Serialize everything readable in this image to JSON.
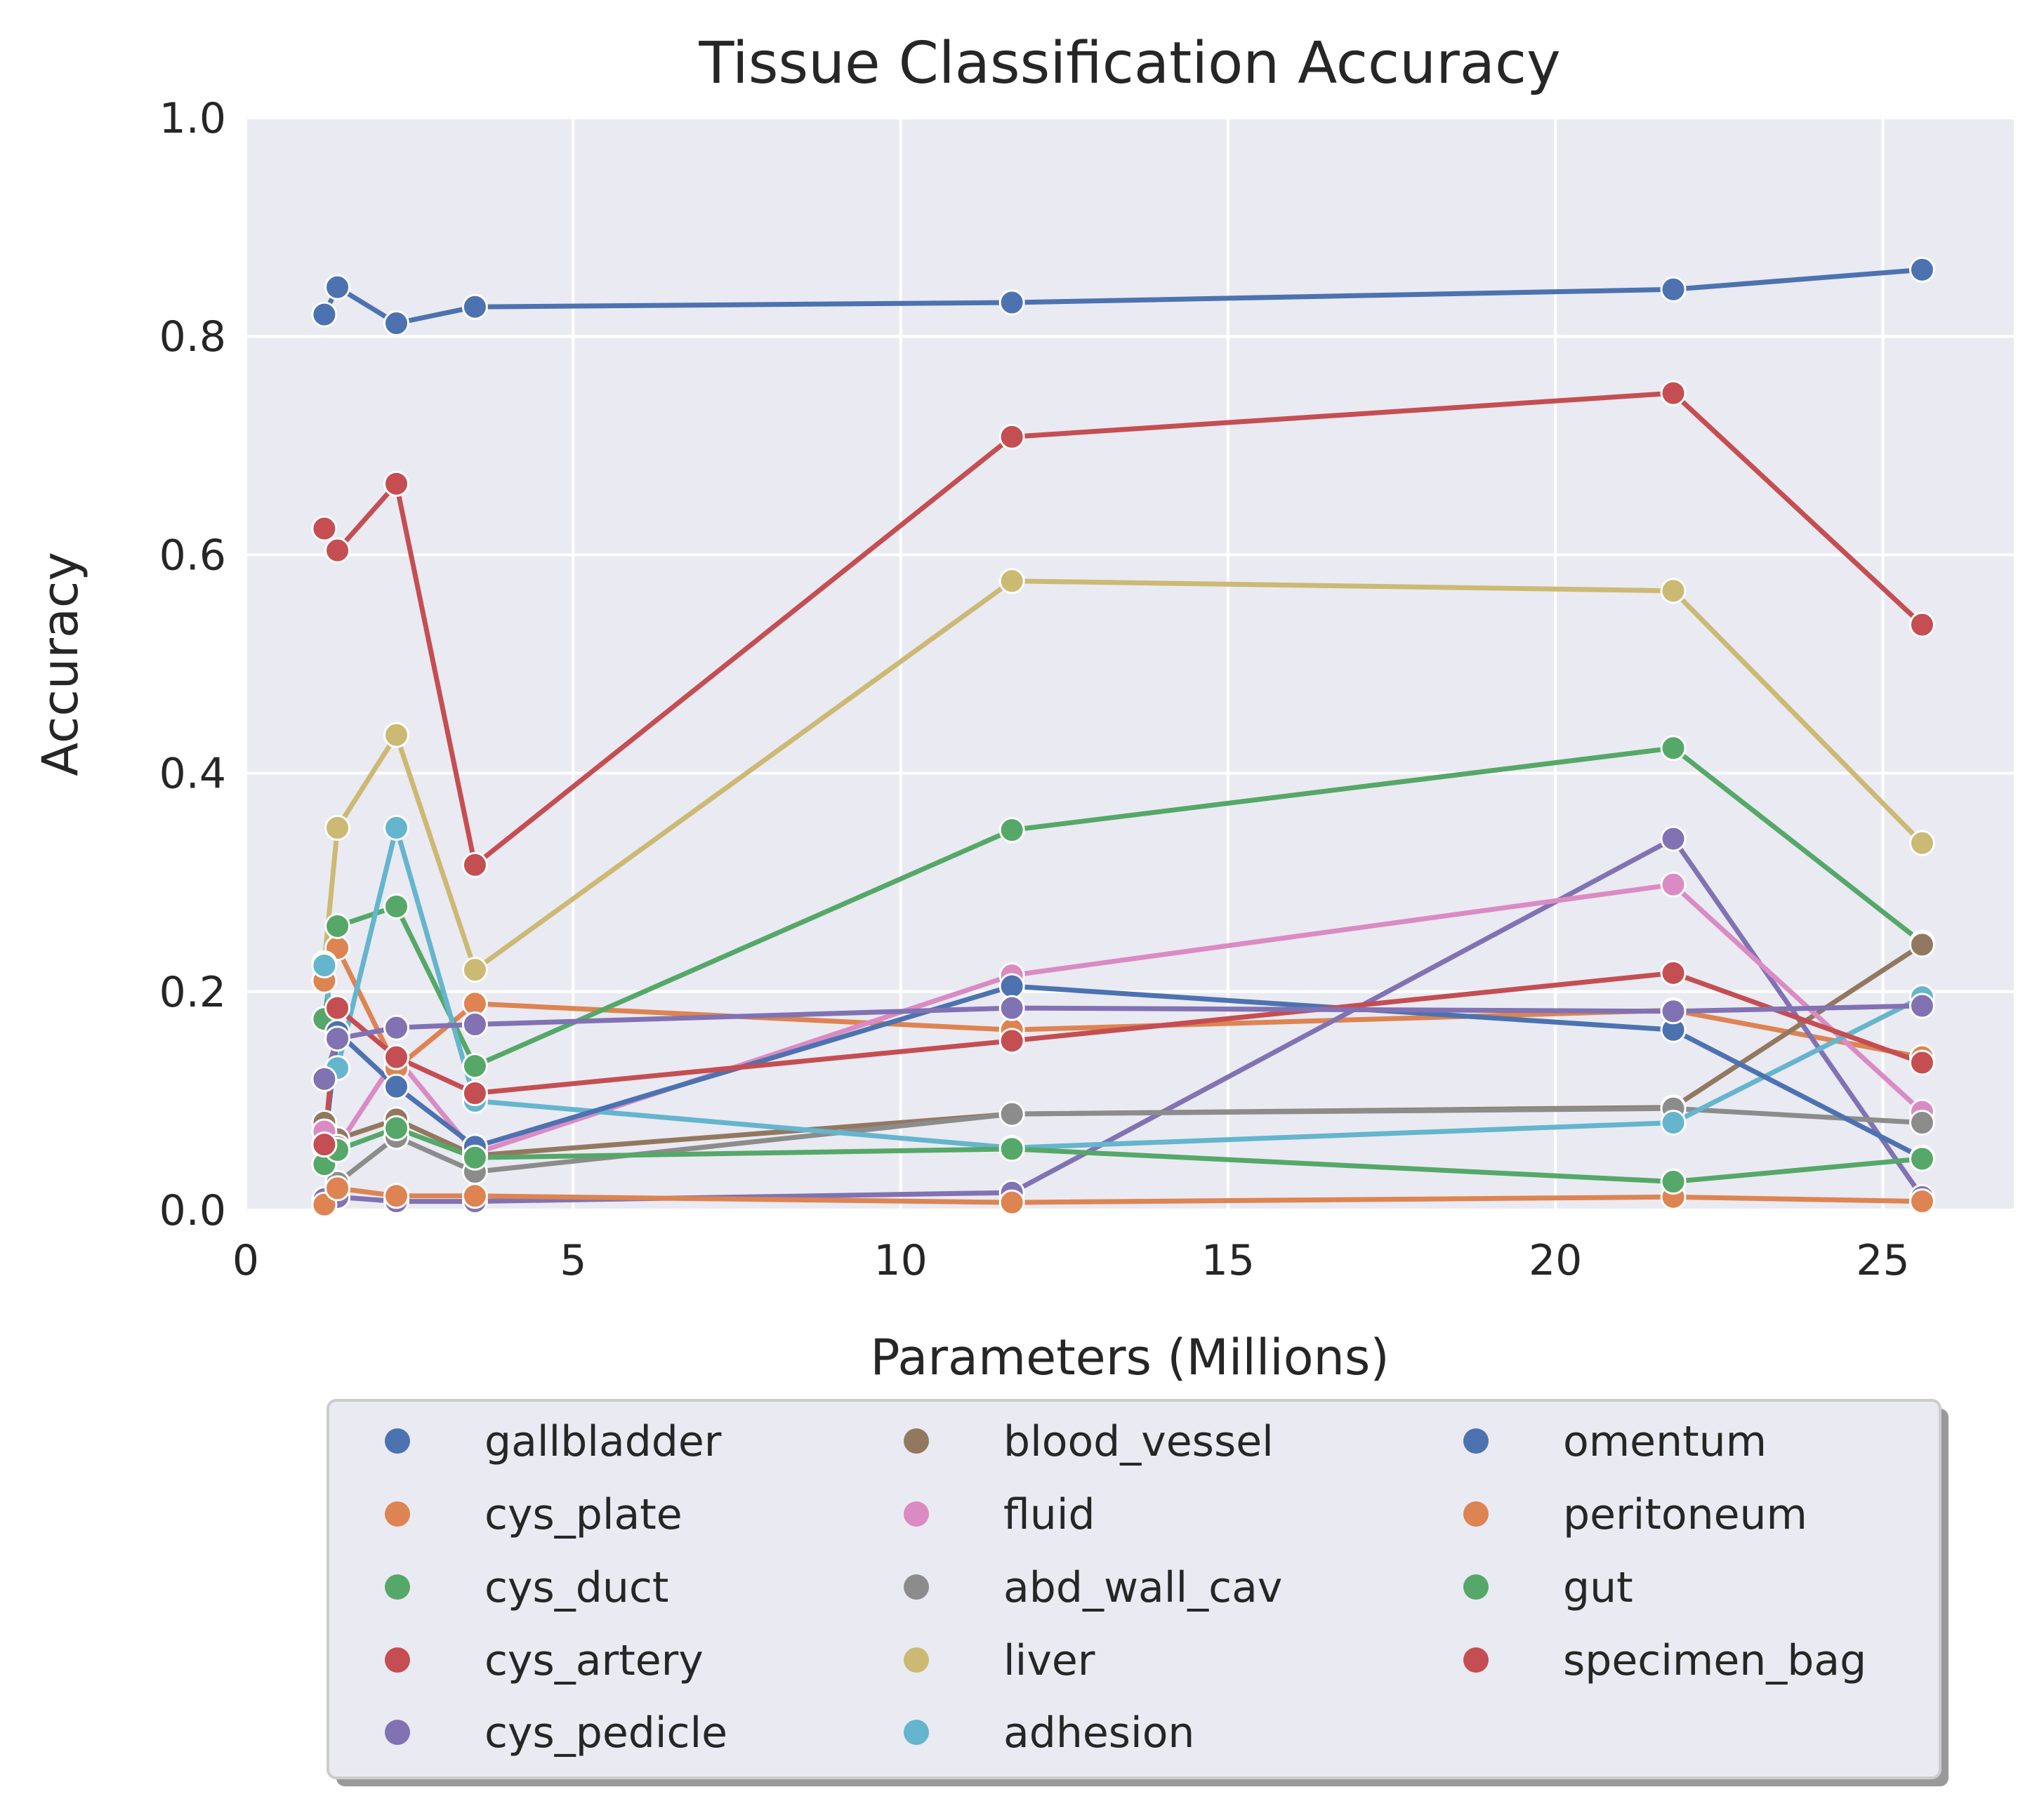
{
  "colors": {
    "plot_bg": "#eaeaf2",
    "grid": "#ffffff",
    "legend_bg": "#eaeaf2",
    "legend_border": "#cccccc",
    "legend_shadow": "#999999"
  },
  "chart_data": {
    "type": "line",
    "title": "Tissue Classification Accuracy",
    "xlabel": "Parameters (Millions)",
    "ylabel": "Accuracy",
    "xlim": [
      0,
      27
    ],
    "ylim": [
      0,
      1
    ],
    "xticks": [
      0,
      5,
      10,
      15,
      20,
      25
    ],
    "yticks": [
      0.0,
      0.2,
      0.4,
      0.6,
      0.8,
      1.0
    ],
    "xtick_labels": [
      "0",
      "5",
      "10",
      "15",
      "20",
      "25"
    ],
    "ytick_labels": [
      "0.0",
      "0.2",
      "0.4",
      "0.6",
      "0.8",
      "1.0"
    ],
    "grid": true,
    "legend_placement": "below plot, 3 columns",
    "x": [
      1.2,
      1.4,
      2.3,
      3.5,
      11.7,
      21.8,
      25.6
    ],
    "series": [
      {
        "name": "gallbladder",
        "color": "#4c72b0",
        "values": [
          0.82,
          0.845,
          0.812,
          0.827,
          0.831,
          0.843,
          0.861
        ]
      },
      {
        "name": "cys_plate",
        "color": "#dd8452",
        "values": [
          0.21,
          0.24,
          0.13,
          0.189,
          0.165,
          0.183,
          0.14
        ]
      },
      {
        "name": "cys_duct",
        "color": "#55a868",
        "values": [
          0.175,
          0.26,
          0.278,
          0.132,
          0.348,
          0.423,
          0.245
        ]
      },
      {
        "name": "cys_artery",
        "color": "#c44e52",
        "values": [
          0.624,
          0.604,
          0.665,
          0.316,
          0.708,
          0.748,
          0.536
        ]
      },
      {
        "name": "cys_pedicle",
        "color": "#8172b3",
        "values": [
          0.01,
          0.012,
          0.008,
          0.008,
          0.016,
          0.34,
          0.012
        ]
      },
      {
        "name": "blood_vessel",
        "color": "#937860",
        "values": [
          0.08,
          0.065,
          0.083,
          0.05,
          0.088,
          0.094,
          0.243
        ]
      },
      {
        "name": "fluid",
        "color": "#da8bc3",
        "values": [
          0.072,
          0.058,
          0.14,
          0.052,
          0.215,
          0.298,
          0.09
        ]
      },
      {
        "name": "abd_wall_cav",
        "color": "#8c8c8c",
        "values": [
          0.06,
          0.025,
          0.067,
          0.035,
          0.088,
          0.093,
          0.08
        ]
      },
      {
        "name": "liver",
        "color": "#ccb974",
        "values": [
          0.226,
          0.35,
          0.435,
          0.22,
          0.576,
          0.567,
          0.336
        ]
      },
      {
        "name": "adhesion",
        "color": "#64b5cd",
        "values": [
          0.224,
          0.13,
          0.35,
          0.1,
          0.057,
          0.08,
          0.195
        ]
      },
      {
        "name": "omentum",
        "color": "#4c72b0",
        "values": [
          0.058,
          0.163,
          0.113,
          0.058,
          0.205,
          0.165,
          0.048
        ]
      },
      {
        "name": "peritoneum",
        "color": "#dd8452",
        "values": [
          0.005,
          0.02,
          0.013,
          0.013,
          0.007,
          0.012,
          0.008
        ]
      },
      {
        "name": "gut",
        "color": "#55a868",
        "values": [
          0.042,
          0.055,
          0.075,
          0.048,
          0.056,
          0.026,
          0.047
        ]
      },
      {
        "name": "specimen_bag",
        "color": "#c44e52",
        "values": [
          0.06,
          0.185,
          0.14,
          0.107,
          0.155,
          0.217,
          0.135
        ]
      },
      {
        "name": "",
        "color": "#8172b3",
        "values": [
          0.12,
          0.157,
          0.167,
          0.17,
          0.185,
          0.182,
          0.187
        ]
      }
    ],
    "legend": [
      [
        "gallbladder",
        "cys_plate",
        "cys_duct",
        "cys_artery",
        "cys_pedicle"
      ],
      [
        "blood_vessel",
        "fluid",
        "abd_wall_cav",
        "liver",
        "adhesion"
      ],
      [
        "omentum",
        "peritoneum",
        "gut",
        "specimen_bag"
      ]
    ]
  }
}
